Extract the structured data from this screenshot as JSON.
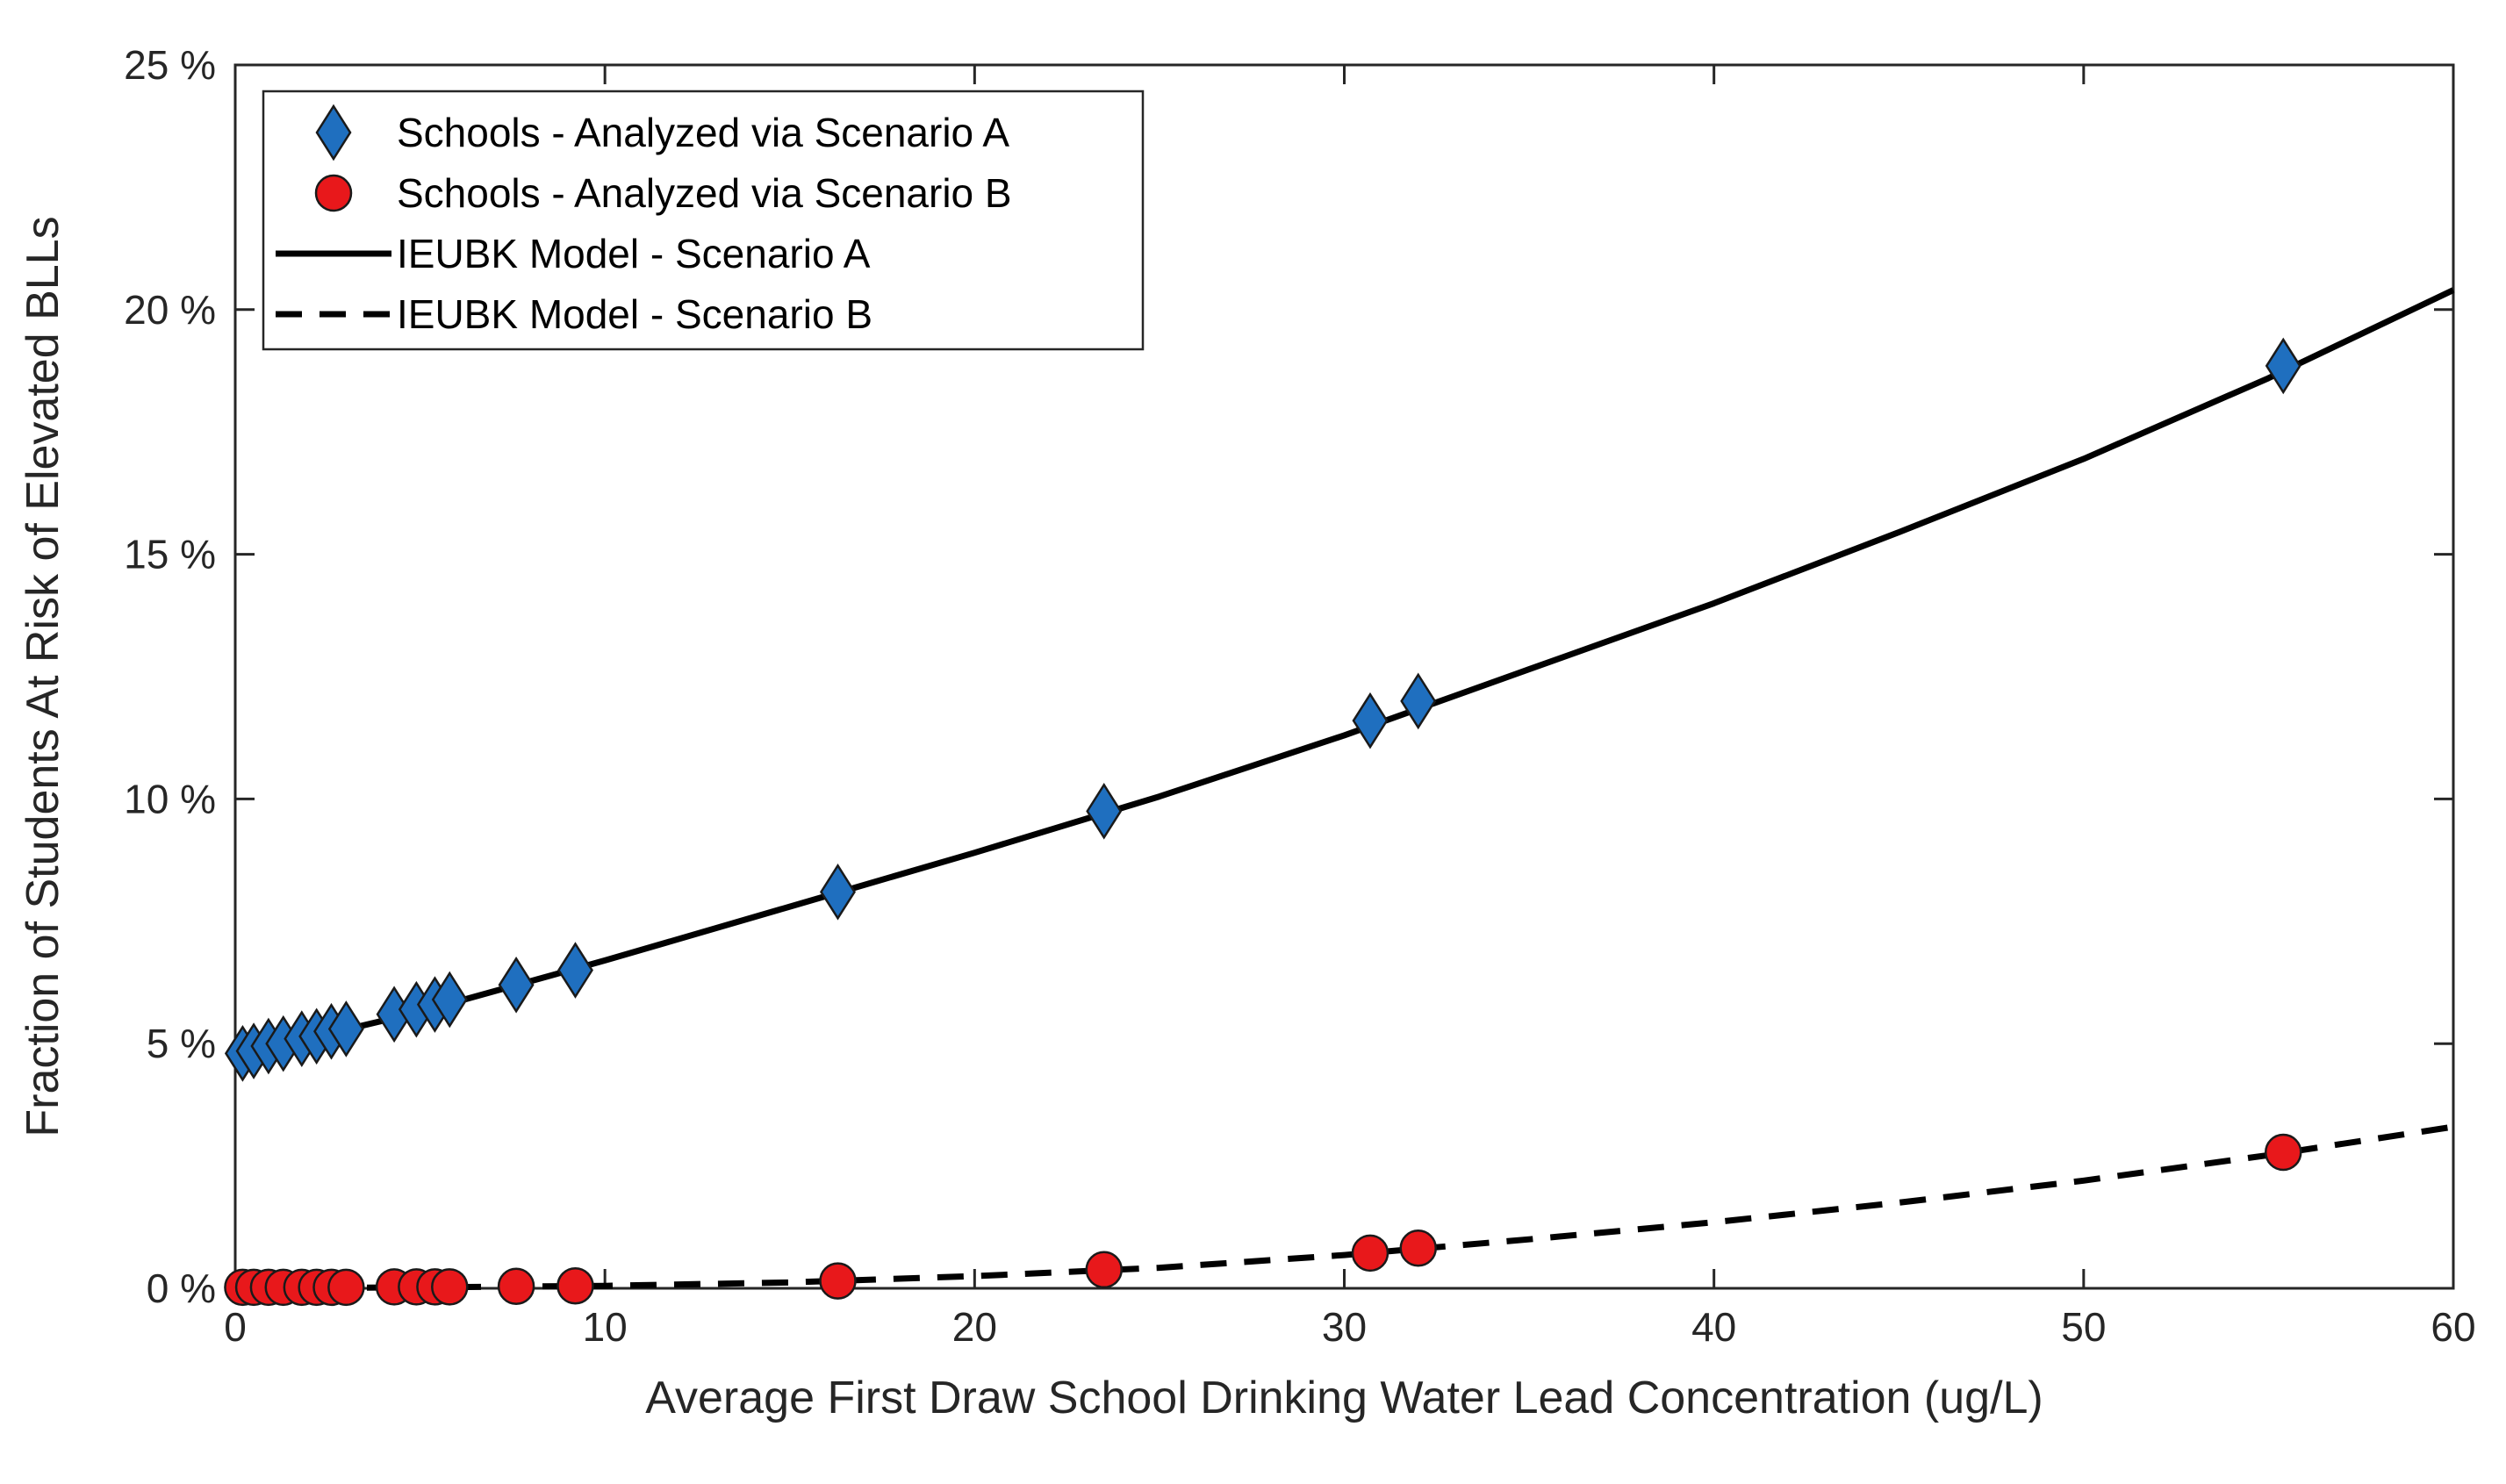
{
  "chart_data": {
    "type": "scatter",
    "xlabel": "Average First Draw School Drinking Water Lead Concentration (ug/L)",
    "ylabel": "Fraction of Students At Risk of Elevated BLLs",
    "xlim": [
      0,
      60
    ],
    "ylim": [
      0,
      25
    ],
    "x_ticks": [
      {
        "value": 0,
        "label": "0"
      },
      {
        "value": 10,
        "label": "10"
      },
      {
        "value": 20,
        "label": "20"
      },
      {
        "value": 30,
        "label": "30"
      },
      {
        "value": 40,
        "label": "40"
      },
      {
        "value": 50,
        "label": "50"
      },
      {
        "value": 60,
        "label": "60"
      }
    ],
    "y_ticks": [
      {
        "value": 0,
        "label": "0 %"
      },
      {
        "value": 5,
        "label": "5 %"
      },
      {
        "value": 10,
        "label": "10 %"
      },
      {
        "value": 15,
        "label": "15 %"
      },
      {
        "value": 20,
        "label": "20 %"
      },
      {
        "value": 25,
        "label": "25 %"
      }
    ],
    "grid": false,
    "legend_position": "top-left",
    "series": [
      {
        "name": "Schools - Analyzed via Scenario A",
        "kind": "scatter",
        "marker": "diamond",
        "color": "#1f6fbf",
        "x": [
          0.2,
          0.5,
          0.9,
          1.3,
          1.8,
          2.2,
          2.6,
          3.0,
          4.3,
          4.9,
          5.4,
          5.8,
          7.6,
          9.2,
          16.3,
          23.5,
          30.7,
          32.0,
          55.4
        ],
        "y": [
          4.8,
          4.85,
          4.95,
          5.0,
          5.1,
          5.15,
          5.25,
          5.3,
          5.6,
          5.7,
          5.8,
          5.9,
          6.2,
          6.5,
          8.1,
          9.75,
          11.6,
          12.0,
          18.85
        ]
      },
      {
        "name": "Schools - Analyzed via Scenario B",
        "kind": "scatter",
        "marker": "circle",
        "color": "#e8181b",
        "x": [
          0.2,
          0.5,
          0.9,
          1.3,
          1.8,
          2.2,
          2.6,
          3.0,
          4.3,
          4.9,
          5.4,
          5.8,
          7.6,
          9.2,
          16.3,
          23.5,
          30.7,
          32.0,
          55.4
        ],
        "y": [
          0.02,
          0.02,
          0.02,
          0.02,
          0.02,
          0.02,
          0.02,
          0.02,
          0.03,
          0.03,
          0.03,
          0.03,
          0.04,
          0.05,
          0.15,
          0.38,
          0.72,
          0.82,
          2.78
        ]
      },
      {
        "name": "IEUBK Model - Scenario A",
        "kind": "line",
        "style": "solid",
        "color": "#000000",
        "x": [
          0,
          5,
          10,
          15,
          20,
          25,
          30,
          35,
          40,
          45,
          50,
          55,
          60
        ],
        "y": [
          4.75,
          5.65,
          6.7,
          7.8,
          8.9,
          10.05,
          11.3,
          12.65,
          14.0,
          15.45,
          16.95,
          18.6,
          20.4
        ]
      },
      {
        "name": "IEUBK Model - Scenario B",
        "kind": "line",
        "style": "dashed",
        "color": "#000000",
        "x": [
          0,
          5,
          10,
          15,
          20,
          25,
          30,
          35,
          40,
          45,
          50,
          55,
          60
        ],
        "y": [
          0.0,
          0.02,
          0.05,
          0.12,
          0.25,
          0.42,
          0.68,
          1.0,
          1.35,
          1.75,
          2.2,
          2.72,
          3.3
        ]
      }
    ]
  }
}
